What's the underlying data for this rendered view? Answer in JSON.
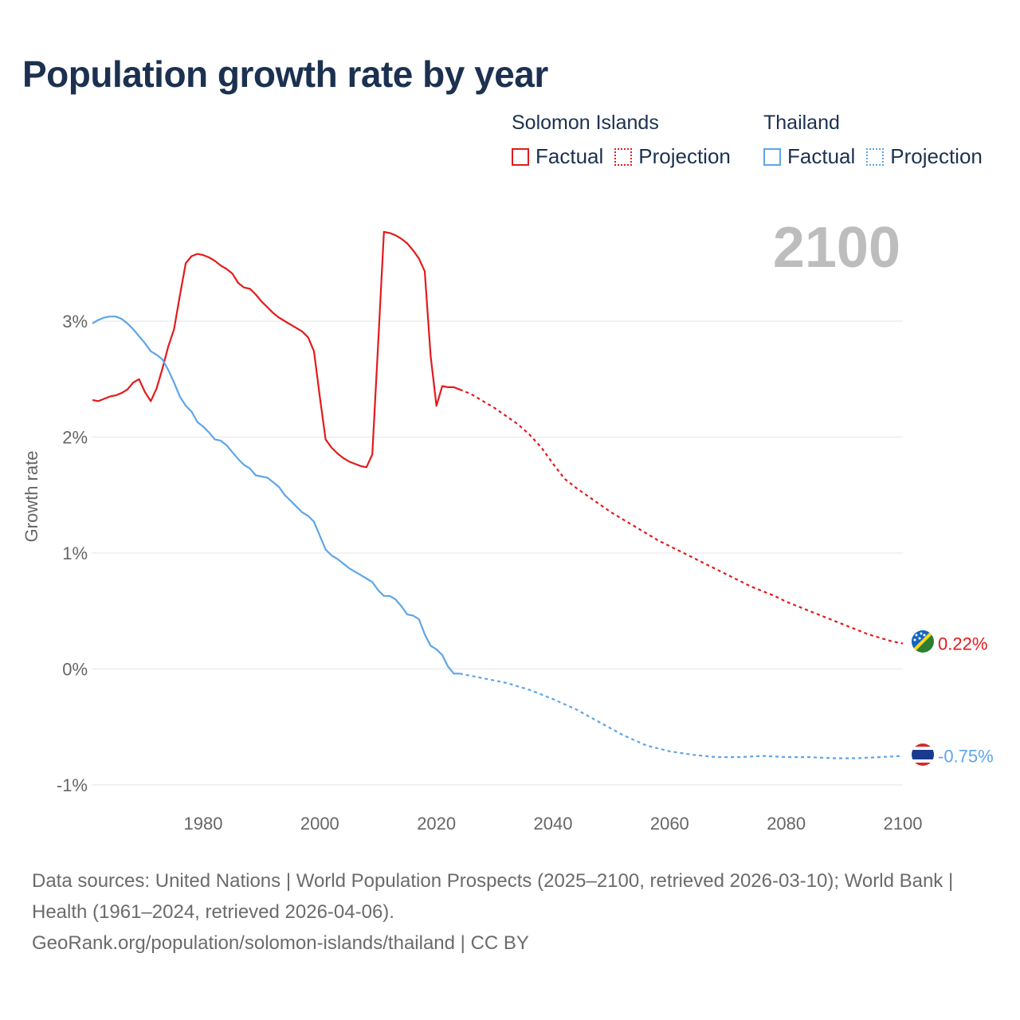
{
  "title": "Population growth rate by year",
  "current_year_label": "2100",
  "legend": {
    "groups": [
      {
        "country": "Solomon Islands",
        "color": "#e31a1c",
        "items": [
          {
            "label": "Factual",
            "style": "solid"
          },
          {
            "label": "Projection",
            "style": "dotted"
          }
        ]
      },
      {
        "country": "Thailand",
        "color": "#5da5e8",
        "items": [
          {
            "label": "Factual",
            "style": "solid"
          },
          {
            "label": "Projection",
            "style": "dotted"
          }
        ]
      }
    ]
  },
  "chart_data": {
    "type": "line",
    "title": "Population growth rate by year",
    "xlabel": "",
    "ylabel": "Growth rate",
    "xlim": [
      1961,
      2100
    ],
    "ylim": [
      -1.1,
      3.8
    ],
    "x_ticks": [
      "1980",
      "2000",
      "2020",
      "2040",
      "2060",
      "2080",
      "2100"
    ],
    "y_ticks": [
      {
        "value": 3,
        "label": "3%"
      },
      {
        "value": 2,
        "label": "2%"
      },
      {
        "value": 1,
        "label": "1%"
      },
      {
        "value": 0,
        "label": "0%"
      },
      {
        "value": -1,
        "label": "-1%"
      }
    ],
    "series": [
      {
        "name": "Solomon Islands",
        "color": "#e31a1c",
        "end_label": "0.22%",
        "flag": "solomon-islands",
        "factual": [
          [
            1961,
            2.32
          ],
          [
            1962,
            2.31
          ],
          [
            1963,
            2.33
          ],
          [
            1964,
            2.35
          ],
          [
            1965,
            2.36
          ],
          [
            1966,
            2.38
          ],
          [
            1967,
            2.41
          ],
          [
            1968,
            2.47
          ],
          [
            1969,
            2.5
          ],
          [
            1970,
            2.39
          ],
          [
            1971,
            2.31
          ],
          [
            1972,
            2.42
          ],
          [
            1973,
            2.59
          ],
          [
            1974,
            2.78
          ],
          [
            1975,
            2.93
          ],
          [
            1976,
            3.22
          ],
          [
            1977,
            3.5
          ],
          [
            1978,
            3.56
          ],
          [
            1979,
            3.58
          ],
          [
            1980,
            3.57
          ],
          [
            1981,
            3.55
          ],
          [
            1982,
            3.52
          ],
          [
            1983,
            3.48
          ],
          [
            1984,
            3.45
          ],
          [
            1985,
            3.41
          ],
          [
            1986,
            3.33
          ],
          [
            1987,
            3.29
          ],
          [
            1988,
            3.28
          ],
          [
            1989,
            3.23
          ],
          [
            1990,
            3.17
          ],
          [
            1991,
            3.12
          ],
          [
            1992,
            3.07
          ],
          [
            1993,
            3.03
          ],
          [
            1994,
            3.0
          ],
          [
            1995,
            2.97
          ],
          [
            1996,
            2.94
          ],
          [
            1997,
            2.91
          ],
          [
            1998,
            2.86
          ],
          [
            1999,
            2.74
          ],
          [
            2000,
            2.35
          ],
          [
            2001,
            1.98
          ],
          [
            2002,
            1.91
          ],
          [
            2003,
            1.86
          ],
          [
            2004,
            1.82
          ],
          [
            2005,
            1.79
          ],
          [
            2006,
            1.77
          ],
          [
            2007,
            1.75
          ],
          [
            2008,
            1.74
          ],
          [
            2009,
            1.85
          ],
          [
            2010,
            2.8
          ],
          [
            2011,
            3.77
          ],
          [
            2012,
            3.76
          ],
          [
            2013,
            3.74
          ],
          [
            2014,
            3.71
          ],
          [
            2015,
            3.67
          ],
          [
            2016,
            3.61
          ],
          [
            2017,
            3.54
          ],
          [
            2018,
            3.43
          ],
          [
            2019,
            2.7
          ],
          [
            2020,
            2.27
          ],
          [
            2021,
            2.44
          ],
          [
            2022,
            2.43
          ],
          [
            2023,
            2.43
          ],
          [
            2024,
            2.41
          ]
        ],
        "projection": [
          [
            2024,
            2.41
          ],
          [
            2026,
            2.37
          ],
          [
            2028,
            2.31
          ],
          [
            2030,
            2.25
          ],
          [
            2032,
            2.18
          ],
          [
            2034,
            2.11
          ],
          [
            2036,
            2.02
          ],
          [
            2038,
            1.91
          ],
          [
            2040,
            1.77
          ],
          [
            2042,
            1.64
          ],
          [
            2044,
            1.56
          ],
          [
            2046,
            1.49
          ],
          [
            2048,
            1.42
          ],
          [
            2050,
            1.35
          ],
          [
            2052,
            1.29
          ],
          [
            2054,
            1.23
          ],
          [
            2056,
            1.17
          ],
          [
            2058,
            1.11
          ],
          [
            2060,
            1.06
          ],
          [
            2062,
            1.01
          ],
          [
            2064,
            0.96
          ],
          [
            2066,
            0.91
          ],
          [
            2068,
            0.86
          ],
          [
            2070,
            0.81
          ],
          [
            2072,
            0.76
          ],
          [
            2074,
            0.71
          ],
          [
            2076,
            0.67
          ],
          [
            2078,
            0.63
          ],
          [
            2080,
            0.58
          ],
          [
            2082,
            0.54
          ],
          [
            2084,
            0.5
          ],
          [
            2086,
            0.46
          ],
          [
            2088,
            0.42
          ],
          [
            2090,
            0.38
          ],
          [
            2092,
            0.34
          ],
          [
            2094,
            0.3
          ],
          [
            2096,
            0.27
          ],
          [
            2098,
            0.24
          ],
          [
            2100,
            0.22
          ]
        ]
      },
      {
        "name": "Thailand",
        "color": "#5da5e8",
        "end_label": "-0.75%",
        "flag": "thailand",
        "factual": [
          [
            1961,
            2.98
          ],
          [
            1962,
            3.01
          ],
          [
            1963,
            3.03
          ],
          [
            1964,
            3.04
          ],
          [
            1965,
            3.04
          ],
          [
            1966,
            3.02
          ],
          [
            1967,
            2.98
          ],
          [
            1968,
            2.93
          ],
          [
            1969,
            2.87
          ],
          [
            1970,
            2.81
          ],
          [
            1971,
            2.74
          ],
          [
            1972,
            2.71
          ],
          [
            1973,
            2.67
          ],
          [
            1974,
            2.58
          ],
          [
            1975,
            2.47
          ],
          [
            1976,
            2.35
          ],
          [
            1977,
            2.27
          ],
          [
            1978,
            2.22
          ],
          [
            1979,
            2.13
          ],
          [
            1980,
            2.09
          ],
          [
            1981,
            2.04
          ],
          [
            1982,
            1.98
          ],
          [
            1983,
            1.97
          ],
          [
            1984,
            1.93
          ],
          [
            1985,
            1.87
          ],
          [
            1986,
            1.81
          ],
          [
            1987,
            1.76
          ],
          [
            1988,
            1.73
          ],
          [
            1989,
            1.67
          ],
          [
            1990,
            1.66
          ],
          [
            1991,
            1.65
          ],
          [
            1992,
            1.61
          ],
          [
            1993,
            1.57
          ],
          [
            1994,
            1.5
          ],
          [
            1995,
            1.45
          ],
          [
            1996,
            1.4
          ],
          [
            1997,
            1.35
          ],
          [
            1998,
            1.32
          ],
          [
            1999,
            1.27
          ],
          [
            2000,
            1.15
          ],
          [
            2001,
            1.03
          ],
          [
            2002,
            0.98
          ],
          [
            2003,
            0.95
          ],
          [
            2004,
            0.91
          ],
          [
            2005,
            0.87
          ],
          [
            2006,
            0.84
          ],
          [
            2007,
            0.81
          ],
          [
            2008,
            0.78
          ],
          [
            2009,
            0.75
          ],
          [
            2010,
            0.68
          ],
          [
            2011,
            0.63
          ],
          [
            2012,
            0.63
          ],
          [
            2013,
            0.6
          ],
          [
            2014,
            0.54
          ],
          [
            2015,
            0.47
          ],
          [
            2016,
            0.46
          ],
          [
            2017,
            0.43
          ],
          [
            2018,
            0.3
          ],
          [
            2019,
            0.2
          ],
          [
            2020,
            0.17
          ],
          [
            2021,
            0.12
          ],
          [
            2022,
            0.02
          ],
          [
            2023,
            -0.04
          ],
          [
            2024,
            -0.04
          ]
        ],
        "projection": [
          [
            2024,
            -0.04
          ],
          [
            2028,
            -0.08
          ],
          [
            2032,
            -0.12
          ],
          [
            2036,
            -0.18
          ],
          [
            2040,
            -0.26
          ],
          [
            2044,
            -0.35
          ],
          [
            2048,
            -0.46
          ],
          [
            2052,
            -0.57
          ],
          [
            2056,
            -0.66
          ],
          [
            2060,
            -0.71
          ],
          [
            2064,
            -0.74
          ],
          [
            2068,
            -0.76
          ],
          [
            2072,
            -0.76
          ],
          [
            2076,
            -0.75
          ],
          [
            2080,
            -0.76
          ],
          [
            2084,
            -0.76
          ],
          [
            2088,
            -0.77
          ],
          [
            2092,
            -0.77
          ],
          [
            2096,
            -0.76
          ],
          [
            2100,
            -0.75
          ]
        ]
      }
    ]
  },
  "footer": {
    "sources": "Data sources: United Nations | World Population Prospects (2025–2100, retrieved 2026-03-10); World Bank | Health (1961–2024, retrieved 2026-04-06).",
    "link": "GeoRank.org/population/solomon-islands/thailand | CC BY"
  }
}
